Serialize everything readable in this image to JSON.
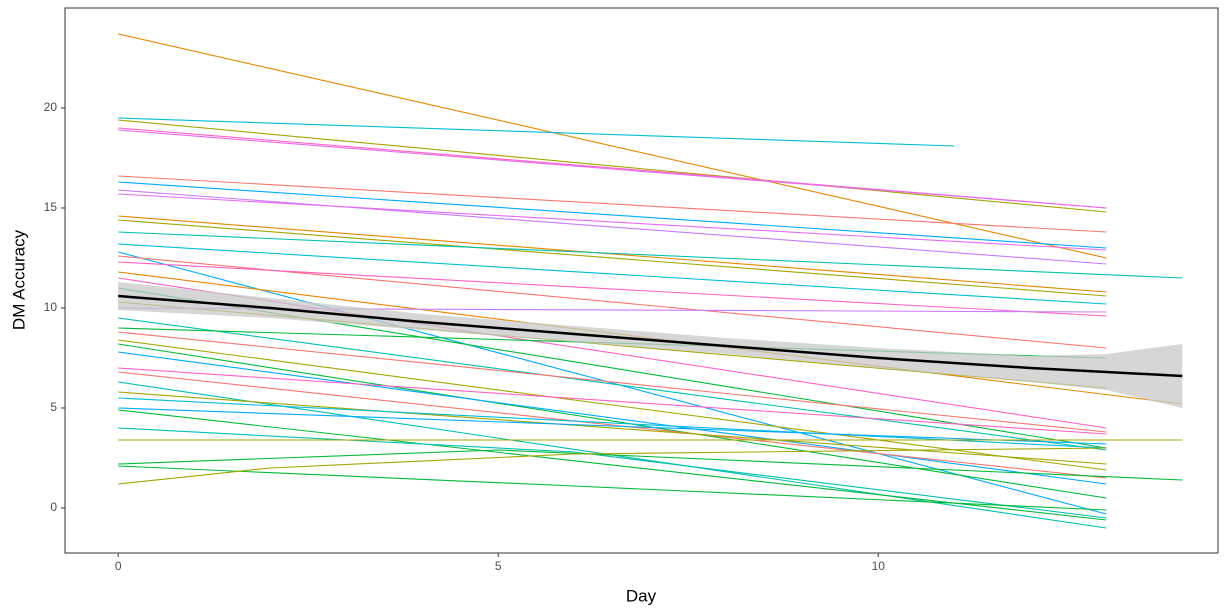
{
  "chart_data": {
    "type": "line",
    "x_label": "Day",
    "y_label": "DM Accuracy",
    "xlim": [
      -0.7,
      14.47
    ],
    "ylim": [
      -2.25,
      25
    ],
    "xticks": [
      0,
      5,
      10
    ],
    "yticks": [
      0,
      5,
      10,
      15,
      20
    ],
    "grid": false,
    "series": [
      {
        "color": "#E58700",
        "x": [
          0,
          13
        ],
        "values": [
          23.7,
          12.5
        ]
      },
      {
        "color": "#00BCD8",
        "x": [
          0,
          11
        ],
        "values": [
          19.5,
          18.1
        ]
      },
      {
        "color": "#A3A500",
        "x": [
          0,
          13
        ],
        "values": [
          19.4,
          14.8
        ]
      },
      {
        "color": "#FF61C3",
        "x": [
          0,
          13
        ],
        "values": [
          19.0,
          15.0
        ]
      },
      {
        "color": "#E76BF3",
        "x": [
          0,
          13
        ],
        "values": [
          18.9,
          15.0
        ]
      },
      {
        "color": "#F8766D",
        "x": [
          0,
          13
        ],
        "values": [
          16.6,
          13.8
        ]
      },
      {
        "color": "#00A9FF",
        "x": [
          0,
          13
        ],
        "values": [
          16.3,
          13.0
        ]
      },
      {
        "color": "#C77CFF",
        "x": [
          0,
          13
        ],
        "values": [
          15.9,
          12.2
        ]
      },
      {
        "color": "#E76BF3",
        "x": [
          0,
          13
        ],
        "values": [
          15.7,
          12.9
        ]
      },
      {
        "color": "#E58700",
        "x": [
          0,
          13
        ],
        "values": [
          14.6,
          10.8
        ]
      },
      {
        "color": "#A3A500",
        "x": [
          0,
          13
        ],
        "values": [
          14.4,
          10.6
        ]
      },
      {
        "color": "#00C0AF",
        "x": [
          0,
          14
        ],
        "values": [
          13.8,
          11.5
        ]
      },
      {
        "color": "#00BCD8",
        "x": [
          0,
          13
        ],
        "values": [
          13.2,
          10.2
        ]
      },
      {
        "color": "#00A9FF",
        "x": [
          0,
          13
        ],
        "values": [
          12.8,
          -0.3
        ]
      },
      {
        "color": "#F8766D",
        "x": [
          0,
          13
        ],
        "values": [
          12.6,
          8.0
        ]
      },
      {
        "color": "#FF61C3",
        "x": [
          0,
          13
        ],
        "values": [
          12.3,
          9.6
        ]
      },
      {
        "color": "#E58700",
        "x": [
          0,
          14
        ],
        "values": [
          11.8,
          5.2
        ]
      },
      {
        "color": "#FF61C3",
        "x": [
          0,
          13
        ],
        "values": [
          11.5,
          4.0
        ]
      },
      {
        "color": "#00BA38",
        "x": [
          0,
          13
        ],
        "values": [
          11.0,
          3.0
        ]
      },
      {
        "color": "#A3A500",
        "x": [
          0,
          13
        ],
        "values": [
          10.3,
          6.0
        ]
      },
      {
        "color": "#C77CFF",
        "x": [
          0,
          13
        ],
        "values": [
          10.0,
          9.8
        ]
      },
      {
        "color": "#00C0AF",
        "x": [
          0,
          13
        ],
        "values": [
          9.5,
          2.9
        ]
      },
      {
        "color": "#00BA38",
        "x": [
          0,
          13
        ],
        "values": [
          9.0,
          7.5
        ]
      },
      {
        "color": "#F8766D",
        "x": [
          0,
          13
        ],
        "values": [
          8.8,
          3.8
        ]
      },
      {
        "color": "#A3A500",
        "x": [
          0,
          13
        ],
        "values": [
          8.4,
          1.9
        ]
      },
      {
        "color": "#00BA38",
        "x": [
          0,
          13
        ],
        "values": [
          8.2,
          0.5
        ]
      },
      {
        "color": "#00A9FF",
        "x": [
          0,
          13
        ],
        "values": [
          7.8,
          1.2
        ]
      },
      {
        "color": "#FF61C3",
        "x": [
          0,
          13
        ],
        "values": [
          7.0,
          3.7
        ]
      },
      {
        "color": "#F8766D",
        "x": [
          0,
          13
        ],
        "values": [
          6.8,
          1.5
        ]
      },
      {
        "color": "#00C0AF",
        "x": [
          0,
          13
        ],
        "values": [
          6.3,
          -1.0
        ]
      },
      {
        "color": "#A3A500",
        "x": [
          0,
          13
        ],
        "values": [
          5.8,
          2.2
        ]
      },
      {
        "color": "#00BCD8",
        "x": [
          0,
          13
        ],
        "values": [
          5.5,
          3.0
        ]
      },
      {
        "color": "#00A9FF",
        "x": [
          0,
          13
        ],
        "values": [
          5.0,
          3.2
        ]
      },
      {
        "color": "#00BA38",
        "x": [
          0,
          13
        ],
        "values": [
          4.9,
          -0.6
        ]
      },
      {
        "color": "#00C0AF",
        "x": [
          0,
          6,
          13
        ],
        "values": [
          4.0,
          2.8,
          -0.5
        ]
      },
      {
        "color": "#A3A500",
        "x": [
          0,
          14
        ],
        "values": [
          3.4,
          3.4
        ]
      },
      {
        "color": "#00BA38",
        "x": [
          0,
          5,
          14
        ],
        "values": [
          2.2,
          2.9,
          1.4
        ]
      },
      {
        "color": "#00BA38",
        "x": [
          0,
          6,
          13
        ],
        "values": [
          2.1,
          1.1,
          -0.1
        ]
      },
      {
        "color": "#A3A500",
        "x": [
          0,
          2,
          6,
          13
        ],
        "values": [
          1.2,
          2.0,
          2.7,
          3.0
        ]
      }
    ],
    "smooth": {
      "color": "#000000",
      "band_color": "#C8C8C8",
      "x": [
        0,
        2,
        4,
        6,
        8,
        10,
        12,
        13,
        14
      ],
      "values": [
        10.6,
        10.0,
        9.3,
        8.7,
        8.1,
        7.5,
        7.0,
        6.8,
        6.6
      ],
      "lower": [
        9.9,
        9.5,
        8.9,
        8.3,
        7.7,
        7.0,
        6.3,
        5.9,
        5.0
      ],
      "upper": [
        11.3,
        10.5,
        9.7,
        9.1,
        8.5,
        8.0,
        7.6,
        7.7,
        8.2
      ]
    }
  }
}
